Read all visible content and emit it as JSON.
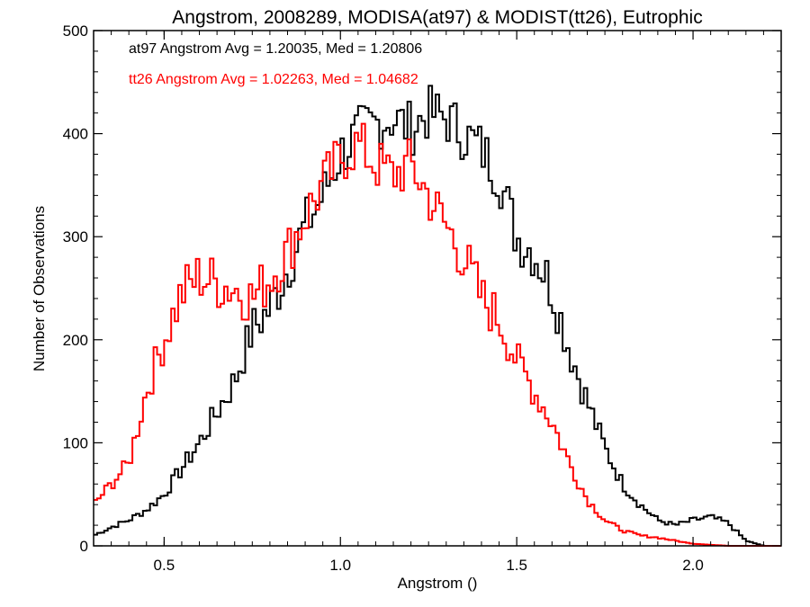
{
  "chart_data": {
    "type": "line",
    "style": "step",
    "title": "Angstrom, 2008289, MODISA(at97) & MODIST(tt26), Eutrophic",
    "xlabel": "Angstrom ()",
    "ylabel": "Number of Observations",
    "xlim": [
      0.3,
      2.25
    ],
    "ylim": [
      0,
      500
    ],
    "xticks": [
      0.5,
      1.0,
      1.5,
      2.0
    ],
    "xtick_labels": [
      "0.5",
      "1.0",
      "1.5",
      "2.0"
    ],
    "yticks": [
      0,
      100,
      200,
      300,
      400,
      500
    ],
    "ytick_labels": [
      "0",
      "100",
      "200",
      "300",
      "400",
      "500"
    ],
    "grid": false,
    "annotations": [
      {
        "text": "at97 Angstrom Avg = 1.20035, Med = 1.20806",
        "color": "#000000"
      },
      {
        "text": "tt26 Angstrom Avg = 1.02263, Med = 1.04682",
        "color": "#ff0000"
      }
    ],
    "series": [
      {
        "color": "#000000",
        "x": [
          0.3,
          0.35,
          0.4,
          0.45,
          0.5,
          0.55,
          0.6,
          0.65,
          0.7,
          0.75,
          0.8,
          0.85,
          0.9,
          0.95,
          1.0,
          1.05,
          1.1,
          1.15,
          1.2,
          1.25,
          1.3,
          1.35,
          1.4,
          1.45,
          1.5,
          1.55,
          1.6,
          1.65,
          1.7,
          1.75,
          1.8,
          1.85,
          1.9,
          1.95,
          2.0,
          2.05,
          2.1,
          2.15,
          2.2,
          2.25
        ],
        "values": [
          10,
          18,
          25,
          35,
          50,
          75,
          100,
          130,
          160,
          210,
          230,
          270,
          310,
          340,
          380,
          400,
          410,
          415,
          405,
          420,
          415,
          400,
          385,
          360,
          300,
          285,
          250,
          190,
          140,
          95,
          60,
          40,
          25,
          20,
          25,
          28,
          22,
          5,
          0,
          0
        ]
      },
      {
        "color": "#ff0000",
        "x": [
          0.3,
          0.35,
          0.4,
          0.45,
          0.5,
          0.55,
          0.6,
          0.65,
          0.7,
          0.75,
          0.8,
          0.85,
          0.9,
          0.95,
          1.0,
          1.05,
          1.1,
          1.15,
          1.2,
          1.25,
          1.3,
          1.35,
          1.4,
          1.45,
          1.5,
          1.55,
          1.6,
          1.65,
          1.7,
          1.75,
          1.8,
          1.85,
          1.9,
          1.95,
          2.0,
          2.05,
          2.1,
          2.15,
          2.2,
          2.25
        ],
        "values": [
          40,
          60,
          80,
          150,
          200,
          245,
          262,
          255,
          250,
          240,
          260,
          285,
          320,
          350,
          375,
          390,
          370,
          360,
          370,
          340,
          310,
          280,
          240,
          220,
          180,
          150,
          120,
          80,
          45,
          25,
          15,
          10,
          8,
          5,
          2,
          1,
          0,
          0,
          0,
          0
        ]
      }
    ]
  }
}
